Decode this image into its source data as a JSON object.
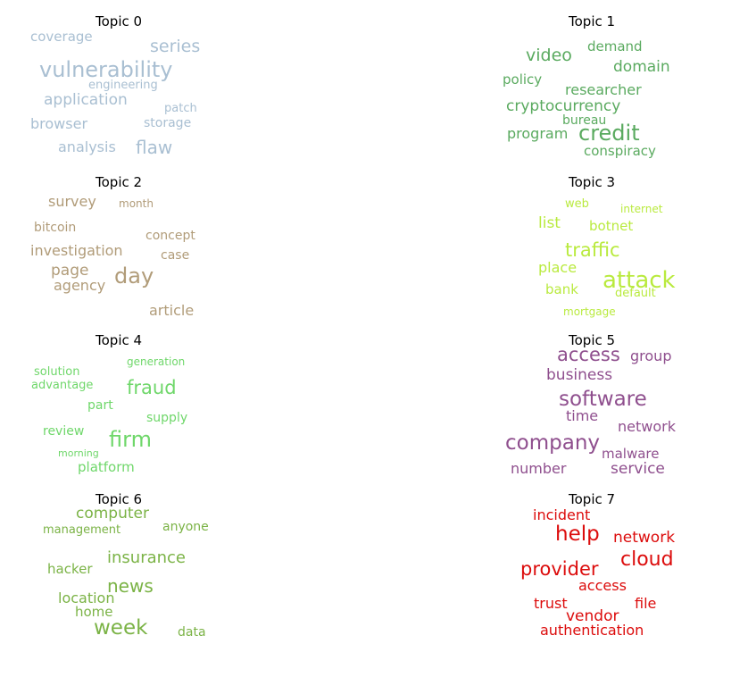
{
  "chart_data": {
    "type": "wordcloud",
    "topics": [
      {
        "title": "Topic 0",
        "color": "#a9bfd2",
        "words": [
          "coverage",
          "series",
          "vulnerability",
          "engineering",
          "application",
          "patch",
          "browser",
          "storage",
          "analysis",
          "flaw"
        ]
      },
      {
        "title": "Topic 1",
        "color": "#5aaa5f",
        "words": [
          "demand",
          "video",
          "domain",
          "policy",
          "researcher",
          "cryptocurrency",
          "bureau",
          "program",
          "credit",
          "conspiracy"
        ]
      },
      {
        "title": "Topic 2",
        "color": "#b19c79",
        "words": [
          "survey",
          "month",
          "bitcoin",
          "concept",
          "investigation",
          "case",
          "page",
          "day",
          "agency",
          "article"
        ]
      },
      {
        "title": "Topic 3",
        "color": "#b9ea3e",
        "words": [
          "web",
          "internet",
          "list",
          "botnet",
          "traffic",
          "place",
          "attack",
          "bank",
          "default",
          "mortgage"
        ]
      },
      {
        "title": "Topic 4",
        "color": "#6fd76a",
        "words": [
          "generation",
          "solution",
          "advantage",
          "fraud",
          "part",
          "supply",
          "review",
          "firm",
          "morning",
          "platform"
        ]
      },
      {
        "title": "Topic 5",
        "color": "#8f4f8e",
        "words": [
          "access",
          "group",
          "business",
          "software",
          "time",
          "network",
          "company",
          "malware",
          "number",
          "service"
        ]
      },
      {
        "title": "Topic 6",
        "color": "#7bb346",
        "words": [
          "computer",
          "management",
          "anyone",
          "insurance",
          "hacker",
          "news",
          "location",
          "home",
          "week",
          "data"
        ]
      },
      {
        "title": "Topic 7",
        "color": "#dc0c0c",
        "words": [
          "incident",
          "help",
          "network",
          "cloud",
          "provider",
          "access",
          "trust",
          "file",
          "vendor",
          "authentication"
        ]
      }
    ]
  }
}
